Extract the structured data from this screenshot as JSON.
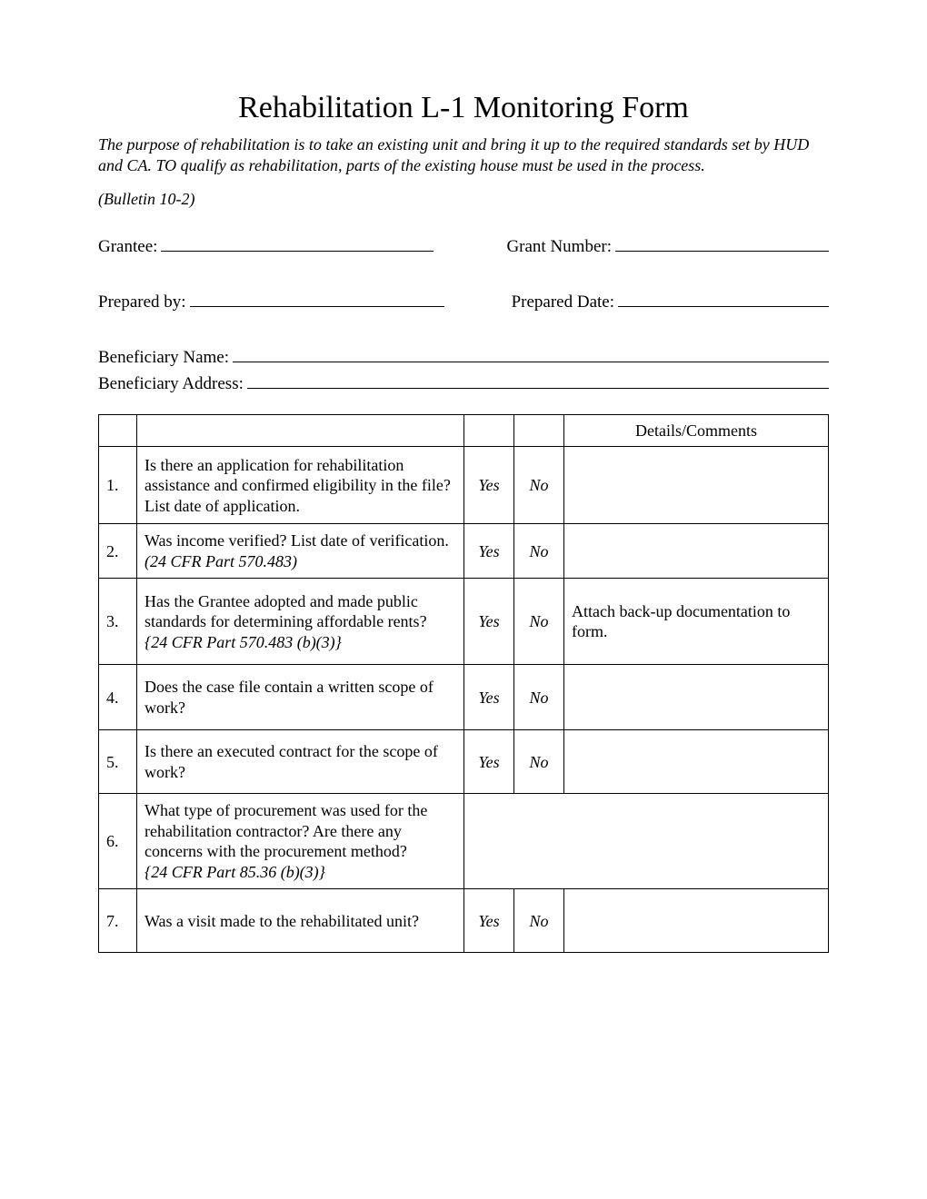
{
  "title": "Rehabilitation L-1 Monitoring Form",
  "purpose": "The purpose of rehabilitation is to take an existing unit and bring it up to the required standards set by HUD and CA.  TO qualify as rehabilitation, parts of the existing house must be used in the process.",
  "bulletin": "(Bulletin 10-2)",
  "fields": {
    "grantee_label": "Grantee:",
    "grant_number_label": "Grant Number:",
    "prepared_by_label": "Prepared by:",
    "prepared_date_label": "Prepared Date:",
    "beneficiary_name_label": "Beneficiary Name:",
    "beneficiary_address_label": "Beneficiary Address:"
  },
  "table": {
    "header_details": "Details/Comments",
    "yes_label": "Yes",
    "no_label": "No",
    "rows": [
      {
        "num": "1.",
        "question": "Is there an application for rehabilitation assistance and confirmed eligibility in the file? List date of application.",
        "cfr": "",
        "details": ""
      },
      {
        "num": "2.",
        "question": "Was income verified? List date of verification.",
        "cfr": "(24 CFR Part 570.483)",
        "details": ""
      },
      {
        "num": "3.",
        "question": "Has the Grantee adopted and made public standards for determining affordable rents?",
        "cfr": "{24 CFR Part 570.483 (b)(3)}",
        "details": "Attach back-up documentation to form."
      },
      {
        "num": "4.",
        "question": "Does the case file contain a written scope of work?",
        "cfr": "",
        "details": ""
      },
      {
        "num": "5.",
        "question": "Is there an executed contract for the scope of work?",
        "cfr": "",
        "details": ""
      },
      {
        "num": "6.",
        "question": "What type of procurement was used for the rehabilitation contractor? Are there any concerns with the procurement method?",
        "cfr": "{24 CFR Part 85.36 (b)(3)}",
        "details": ""
      },
      {
        "num": "7.",
        "question": "Was a visit made to the rehabilitated unit?",
        "cfr": "",
        "details": ""
      }
    ]
  }
}
